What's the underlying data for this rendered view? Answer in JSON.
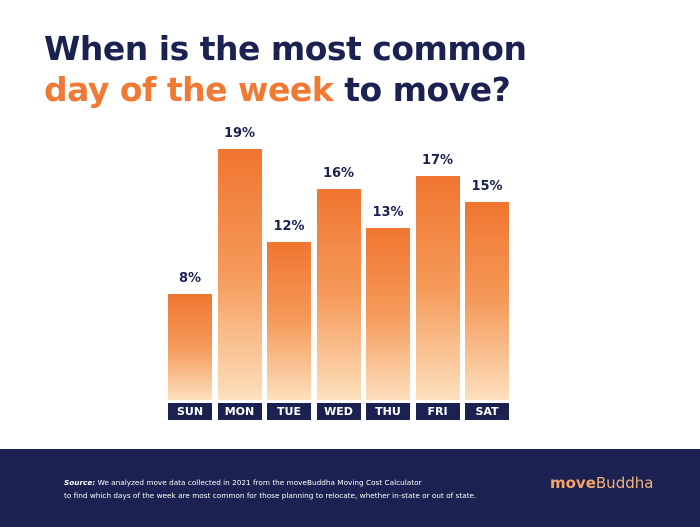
{
  "title": {
    "line1": "When is the most common",
    "line2_accent": "day of the week",
    "line2_rest": " to move?"
  },
  "colors": {
    "navy": "#1b2150",
    "orange": "#f07a34",
    "bar_top": "#f07530",
    "bar_bottom": "#fde0bd"
  },
  "chart_data": {
    "type": "bar",
    "title": "When is the most common day of the week to move?",
    "categories": [
      "SUN",
      "MON",
      "TUE",
      "WED",
      "THU",
      "FRI",
      "SAT"
    ],
    "values": [
      8,
      19,
      12,
      16,
      13,
      17,
      15
    ],
    "labels": [
      "8%",
      "19%",
      "12%",
      "16%",
      "13%",
      "17%",
      "15%"
    ],
    "xlabel": "",
    "ylabel": "",
    "unit": "%",
    "grid": false,
    "legend": "none"
  },
  "footer": {
    "source_label": "Source:",
    "source_line1": " We analyzed move data collected in 2021 from the moveBuddha Moving Cost Calculator",
    "source_line2": "to find which days of the week are most common for those planning to relocate, whether in-state or out of state.",
    "logo_bold": "move",
    "logo_light": "Buddha"
  }
}
